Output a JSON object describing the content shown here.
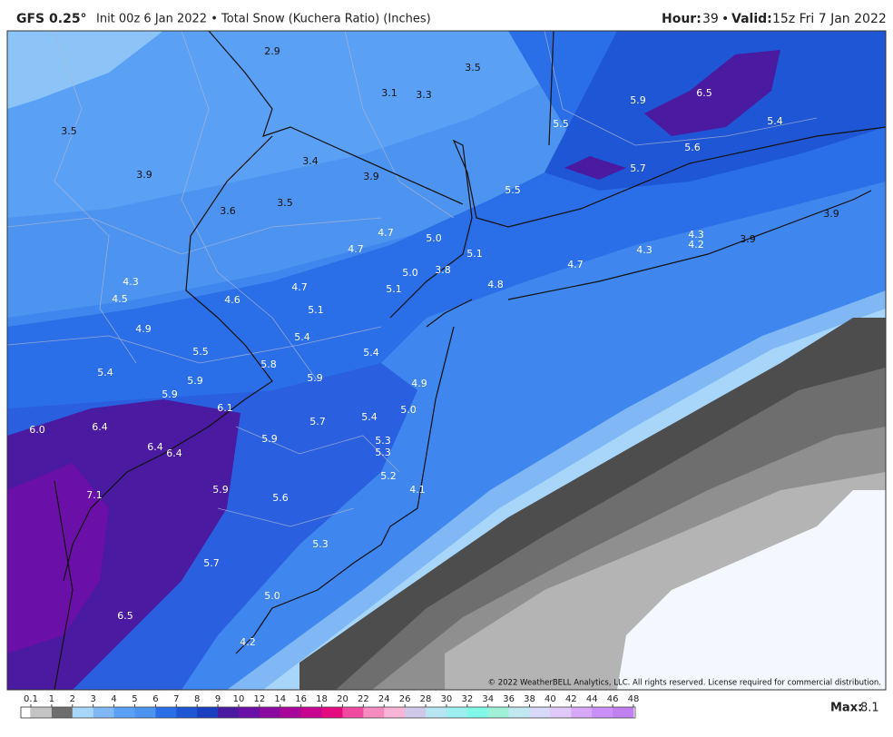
{
  "header": {
    "model": "GFS 0.25°",
    "description": "Init 00z 6 Jan 2022 • Total Snow (Kuchera Ratio) (Inches)",
    "hour_label": "Hour:",
    "hour": "39",
    "separator": "•",
    "valid_label": "Valid:",
    "valid": "15z Fri 7 Jan 2022"
  },
  "map": {
    "labels": [
      "2.9",
      "3.5",
      "3.1",
      "3.3",
      "5.9",
      "6.5",
      "5.5",
      "5.4",
      "3.5",
      "5.6",
      "5.7",
      "3.4",
      "3.9",
      "3.9",
      "5.5",
      "3.6",
      "3.5",
      "3.9",
      "4.7",
      "5.0",
      "4.3",
      "4.2",
      "3.9",
      "4.7",
      "4.3",
      "5.1",
      "4.7",
      "5.0",
      "3.8",
      "4.3",
      "4.5",
      "4.6",
      "4.7",
      "5.1",
      "4.8",
      "5.1",
      "4.9",
      "5.4",
      "5.5",
      "5.4",
      "5.8",
      "5.4",
      "5.9",
      "5.9",
      "4.9",
      "5.9",
      "6.1",
      "5.0",
      "5.7",
      "5.4",
      "6.0",
      "6.4",
      "5.9",
      "5.3",
      "5.3",
      "6.4",
      "6.4",
      "5.2",
      "4.1",
      "7.1",
      "5.9",
      "5.6",
      "5.3",
      "5.7",
      "5.0",
      "6.5",
      "4.2"
    ],
    "copyright": "© 2022 WeatherBELL Analytics, LLC. All rights reserved. License required for commercial distribution."
  },
  "legend": {
    "ticks": [
      0.1,
      1,
      2,
      3,
      4,
      5,
      6,
      7,
      8,
      9,
      10,
      12,
      14,
      16,
      18,
      20,
      22,
      24,
      26,
      28,
      30,
      32,
      34,
      36,
      38,
      40,
      42,
      44,
      46,
      48
    ],
    "max_label": "Max:",
    "max": "8.1"
  }
}
